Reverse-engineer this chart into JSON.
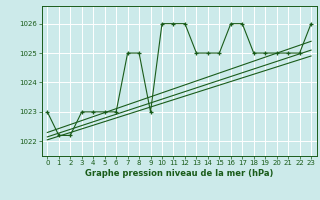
{
  "title": "Graphe pression niveau de la mer (hPa)",
  "bg_color": "#cceaea",
  "grid_color": "#ffffff",
  "line_color": "#1a5c1a",
  "x_min": -0.5,
  "x_max": 23.5,
  "y_min": 1021.5,
  "y_max": 1026.6,
  "yticks": [
    1022,
    1023,
    1024,
    1025,
    1026
  ],
  "xticks": [
    0,
    1,
    2,
    3,
    4,
    5,
    6,
    7,
    8,
    9,
    10,
    11,
    12,
    13,
    14,
    15,
    16,
    17,
    18,
    19,
    20,
    21,
    22,
    23
  ],
  "series1_x": [
    0,
    1,
    2,
    3,
    4,
    5,
    6,
    7,
    8,
    9,
    10,
    11,
    12,
    13,
    14,
    15,
    16,
    17,
    18,
    19,
    20,
    21,
    22,
    23
  ],
  "series1_y": [
    1023.0,
    1022.2,
    1022.2,
    1023.0,
    1023.0,
    1023.0,
    1023.0,
    1025.0,
    1025.0,
    1023.0,
    1026.0,
    1026.0,
    1026.0,
    1025.0,
    1025.0,
    1025.0,
    1026.0,
    1026.0,
    1025.0,
    1025.0,
    1025.0,
    1025.0,
    1025.0,
    1026.0
  ],
  "trend1_x": [
    0,
    23
  ],
  "trend1_y": [
    1022.05,
    1024.9
  ],
  "trend2_x": [
    0,
    23
  ],
  "trend2_y": [
    1022.15,
    1025.1
  ],
  "trend3_x": [
    0,
    23
  ],
  "trend3_y": [
    1022.3,
    1025.4
  ]
}
